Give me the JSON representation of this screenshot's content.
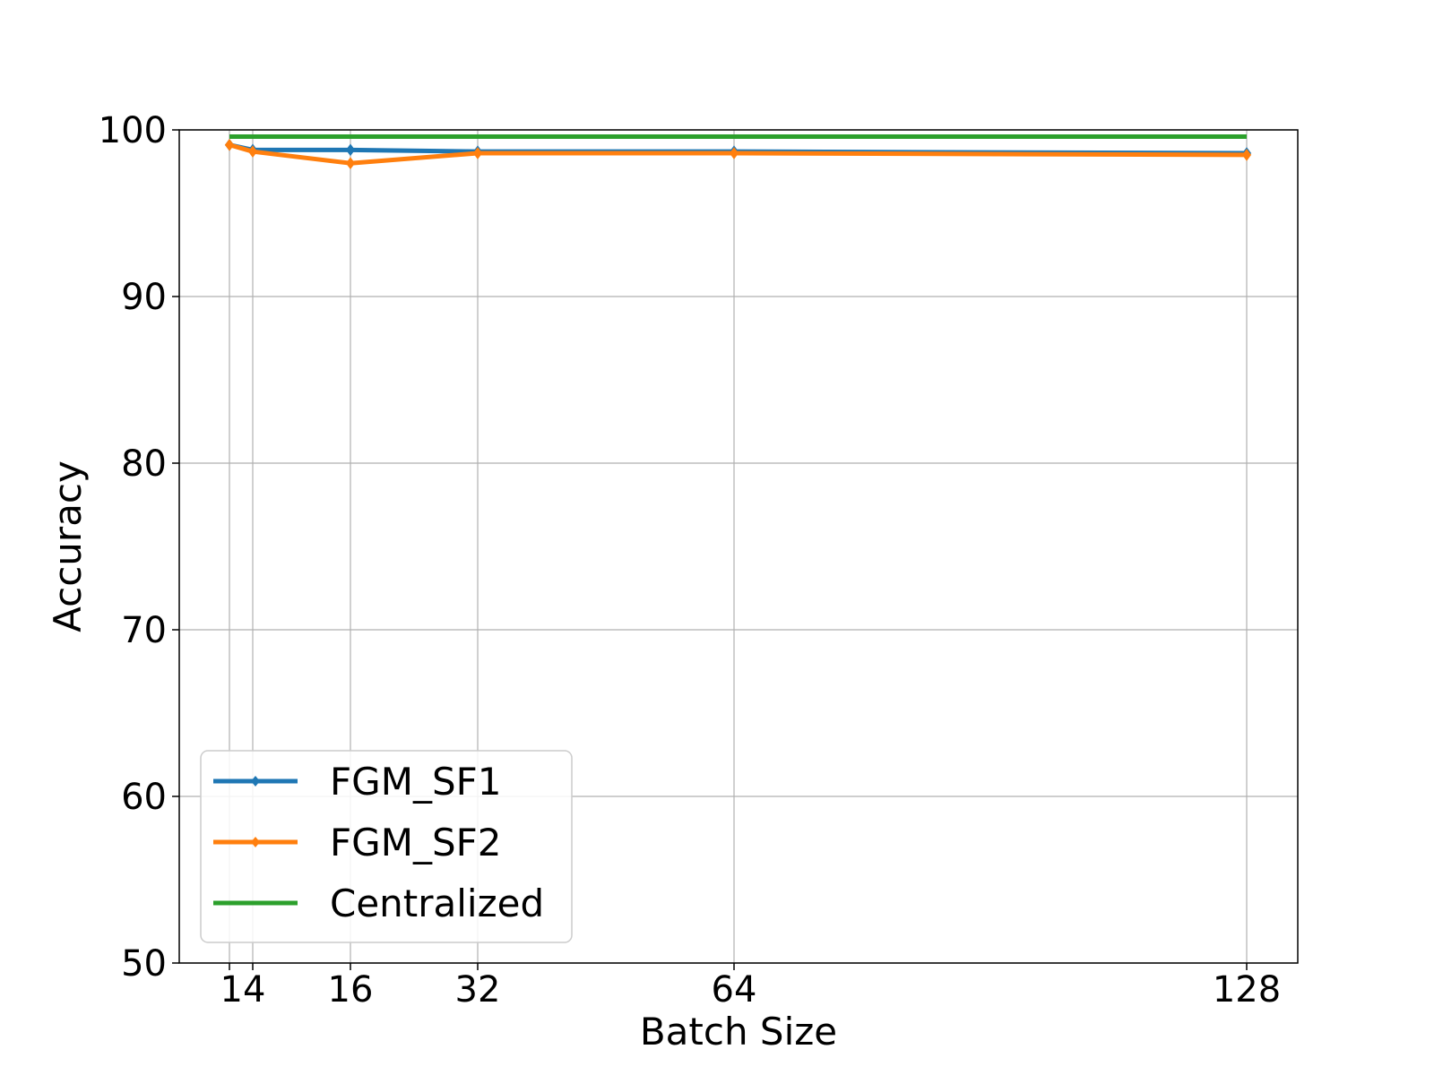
{
  "chart_data": {
    "type": "line",
    "title": "",
    "xlabel": "Batch Size",
    "ylabel": "Accuracy",
    "x_tick_labels": [
      "14",
      "16",
      "32",
      "64",
      "128"
    ],
    "y_ticks": [
      50,
      60,
      70,
      80,
      90,
      100
    ],
    "ylim": [
      50,
      100
    ],
    "grid": true,
    "legend_position": "lower-left",
    "series": [
      {
        "name": "FGM_SF1",
        "color": "#1f77b4",
        "marker": "diamond",
        "points": [
          {
            "x": "",
            "y": 99.1
          },
          {
            "x": "14",
            "y": 98.8
          },
          {
            "x": "16",
            "y": 98.8
          },
          {
            "x": "32",
            "y": 98.7
          },
          {
            "x": "64",
            "y": 98.7
          },
          {
            "x": "128",
            "y": 98.6
          }
        ]
      },
      {
        "name": "FGM_SF2",
        "color": "#ff7f0e",
        "marker": "diamond",
        "points": [
          {
            "x": "",
            "y": 99.1
          },
          {
            "x": "14",
            "y": 98.7
          },
          {
            "x": "16",
            "y": 98.0
          },
          {
            "x": "32",
            "y": 98.6
          },
          {
            "x": "64",
            "y": 98.6
          },
          {
            "x": "128",
            "y": 98.5
          }
        ]
      },
      {
        "name": "Centralized",
        "color": "#2ca02c",
        "marker": "none",
        "points": [
          {
            "x": "",
            "y": 99.6
          },
          {
            "x": "128",
            "y": 99.6
          }
        ]
      }
    ]
  }
}
